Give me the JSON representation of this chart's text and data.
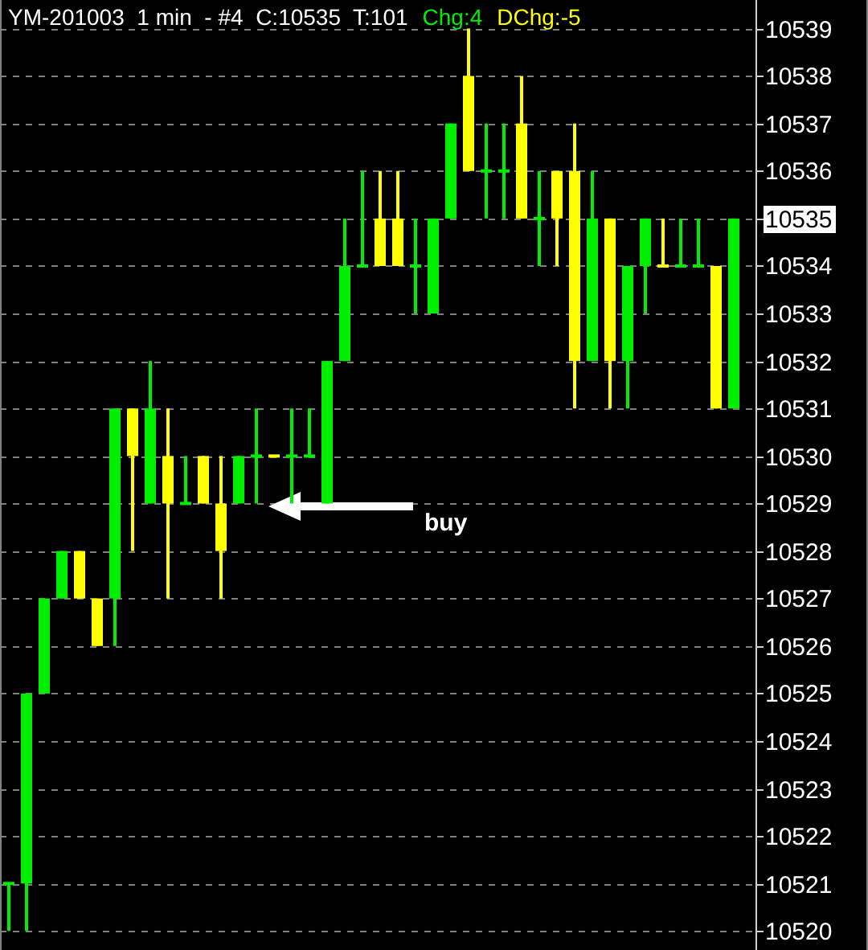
{
  "chart_data": {
    "type": "candlestick",
    "title": "YM-201003  1 min  - #4  C:10535  T:101",
    "annotations": [
      "Chg:4",
      "DChg:-5",
      "buy"
    ],
    "categories": [
      null,
      null,
      null,
      null,
      null,
      null,
      null,
      null,
      null,
      null,
      null,
      null,
      null,
      null,
      null,
      null,
      null,
      null,
      null,
      null,
      null,
      null,
      null,
      null,
      null,
      null,
      null,
      null,
      null,
      null,
      null,
      null,
      null,
      null,
      null,
      null,
      null,
      null,
      null,
      null,
      null,
      null
    ],
    "ohlc": [
      [
        10521,
        10521,
        10520,
        10521
      ],
      [
        10521,
        10525,
        10520,
        10525
      ],
      [
        10525,
        10527,
        10525,
        10527
      ],
      [
        10527,
        10528,
        10527,
        10528
      ],
      [
        10528,
        10528,
        10527,
        10527
      ],
      [
        10527,
        10527,
        10526,
        10526
      ],
      [
        10527,
        10531,
        10526,
        10531
      ],
      [
        10531,
        10531,
        10528,
        10530
      ],
      [
        10529,
        10532,
        10529,
        10531
      ],
      [
        10530,
        10531,
        10527,
        10529
      ],
      [
        10529,
        10530,
        10529,
        10529
      ],
      [
        10530,
        10530,
        10529,
        10529
      ],
      [
        10529,
        10530,
        10527,
        10528
      ],
      [
        10529,
        10530,
        10529,
        10530
      ],
      [
        10530,
        10531,
        10529,
        10530
      ],
      [
        10530,
        10530,
        10530,
        10530
      ],
      [
        10530,
        10531,
        10529,
        10530
      ],
      [
        10530,
        10531,
        10530,
        10530
      ],
      [
        10529,
        10532,
        10529,
        10532
      ],
      [
        10532,
        10535,
        10532,
        10534
      ],
      [
        10534,
        10536,
        10534,
        10534
      ],
      [
        10535,
        10536,
        10534,
        10534
      ],
      [
        10535,
        10536,
        10534,
        10534
      ],
      [
        10534,
        10535,
        10533,
        10534
      ],
      [
        10533,
        10535,
        10533,
        10535
      ],
      [
        10535,
        10537,
        10535,
        10537
      ],
      [
        10538,
        10539,
        10536,
        10536
      ],
      [
        10536,
        10537,
        10535,
        10536
      ],
      [
        10536,
        10537,
        10535,
        10536
      ],
      [
        10537,
        10538,
        10535,
        10535
      ],
      [
        10535,
        10536,
        10534,
        10535
      ],
      [
        10536,
        10536,
        10534,
        10535
      ],
      [
        10536,
        10537,
        10531,
        10532
      ],
      [
        10532,
        10536,
        10532,
        10535
      ],
      [
        10535,
        10535,
        10531,
        10532
      ],
      [
        10532,
        10534,
        10531,
        10534
      ],
      [
        10534,
        10535,
        10533,
        10535
      ],
      [
        10534,
        10535,
        10534,
        10534
      ],
      [
        10534,
        10535,
        10534,
        10534
      ],
      [
        10534,
        10535,
        10534,
        10534
      ],
      [
        10534,
        10534,
        10531,
        10531
      ],
      [
        10531,
        10535,
        10531,
        10535
      ]
    ],
    "colors": [
      "#00ee00",
      "#00ee00",
      "#00ee00",
      "#00ee00",
      "#ffff00",
      "#ffff00",
      "#00ee00",
      "#ffff00",
      "#00ee00",
      "#ffff00",
      "#00ee00",
      "#ffff00",
      "#ffff00",
      "#00ee00",
      "#00ee00",
      "#ffff00",
      "#00ee00",
      "#00ee00",
      "#00ee00",
      "#00ee00",
      "#00ee00",
      "#ffff00",
      "#ffff00",
      "#00ee00",
      "#00ee00",
      "#00ee00",
      "#ffff00",
      "#00ee00",
      "#00ee00",
      "#ffff00",
      "#00ee00",
      "#ffff00",
      "#ffff00",
      "#00ee00",
      "#ffff00",
      "#00ee00",
      "#00ee00",
      "#ffff00",
      "#00ee00",
      "#00ee00",
      "#ffff00",
      "#00ee00"
    ],
    "ylim": [
      10519.6,
      10539.6
    ],
    "yticks": [
      10520,
      10521,
      10522,
      10523,
      10524,
      10525,
      10526,
      10527,
      10528,
      10529,
      10530,
      10531,
      10532,
      10533,
      10534,
      10535,
      10536,
      10537,
      10538,
      10539
    ],
    "grid": "y",
    "tick_labels": "y"
  }
}
